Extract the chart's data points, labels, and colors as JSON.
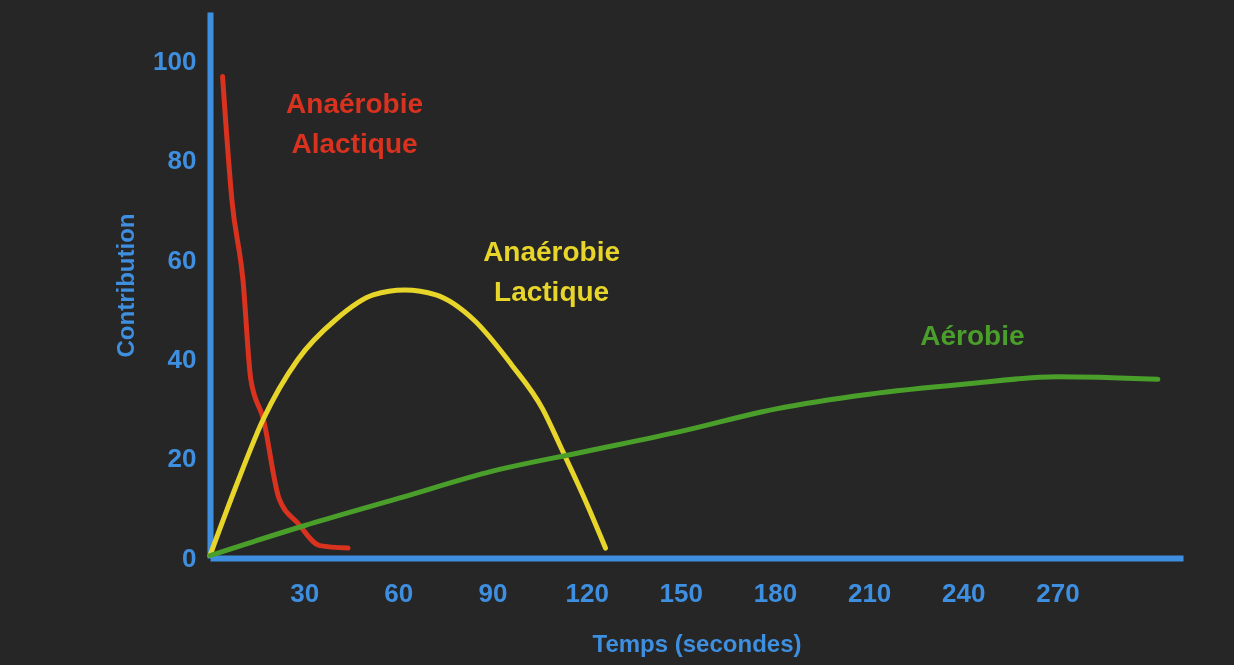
{
  "chart_data": {
    "type": "line",
    "xlabel": "Temps (secondes)",
    "ylabel": "Contribution",
    "xlim": [
      0,
      310
    ],
    "ylim": [
      0,
      110
    ],
    "xticks": [
      30,
      60,
      90,
      120,
      150,
      180,
      210,
      240,
      270
    ],
    "yticks": [
      0,
      20,
      40,
      60,
      80,
      100
    ],
    "grid": false,
    "line_style": "solid",
    "marker": "none",
    "series": [
      {
        "name": "Anaérobie Alactique",
        "color": "#d9321f",
        "x": [
          4,
          7,
          10.5,
          13,
          17,
          22,
          28,
          35,
          44
        ],
        "values": [
          97,
          72,
          56,
          36,
          28,
          12,
          7,
          2.5,
          2
        ]
      },
      {
        "name": "Anaérobie Lactique",
        "color": "#e8d52a",
        "x": [
          0,
          8,
          17,
          28,
          40,
          52,
          62,
          72,
          84,
          96,
          106,
          112,
          120,
          126
        ],
        "values": [
          0.5,
          14,
          28,
          40,
          48,
          53,
          54,
          53,
          48,
          39,
          30,
          22,
          11,
          2
        ]
      },
      {
        "name": "Aérobie",
        "color": "#4a9e2a",
        "x": [
          0,
          30,
          60,
          90,
          120,
          150,
          180,
          210,
          240,
          270,
          302
        ],
        "values": [
          0.5,
          6.5,
          12,
          17.5,
          21.5,
          25.5,
          30,
          33,
          35,
          36.5,
          36
        ]
      }
    ]
  }
}
